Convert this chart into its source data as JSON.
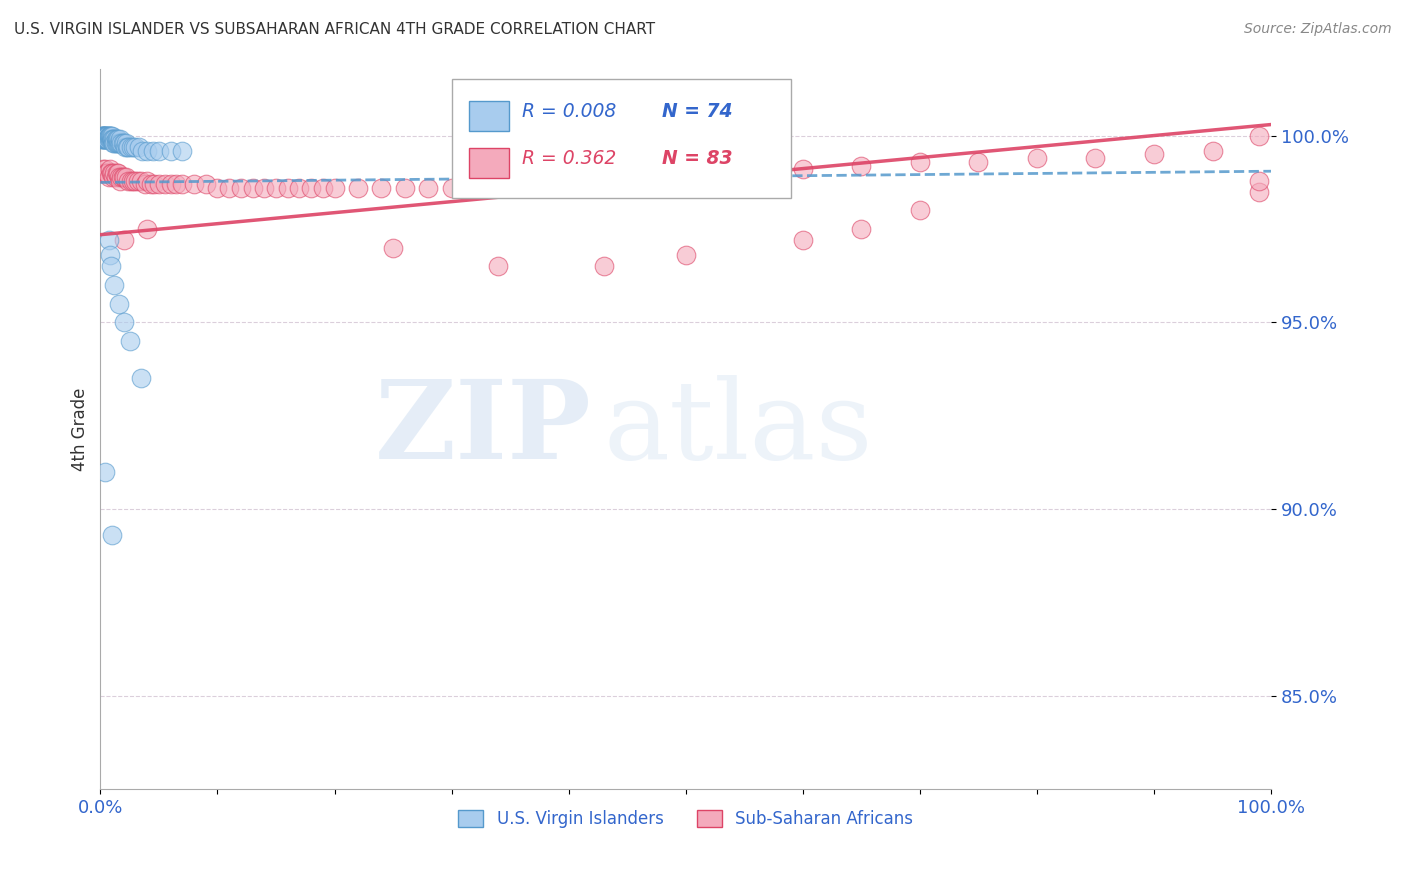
{
  "title": "U.S. VIRGIN ISLANDER VS SUBSAHARAN AFRICAN 4TH GRADE CORRELATION CHART",
  "source": "Source: ZipAtlas.com",
  "ylabel": "4th Grade",
  "ytick_labels": [
    "85.0%",
    "90.0%",
    "95.0%",
    "100.0%"
  ],
  "ytick_values": [
    0.85,
    0.9,
    0.95,
    1.0
  ],
  "xlim": [
    0.0,
    1.0
  ],
  "ylim": [
    0.825,
    1.018
  ],
  "legend_r1": "R = 0.008",
  "legend_n1": "N = 74",
  "legend_r2": "R = 0.362",
  "legend_n2": "N = 83",
  "color_blue": "#A8CCEE",
  "color_pink": "#F4AABC",
  "color_blue_line": "#5599CC",
  "color_pink_line": "#DD4466",
  "color_axis_label": "#3366CC",
  "color_title": "#333333",
  "watermark_zip": "ZIP",
  "watermark_atlas": "atlas",
  "legend_label_blue": "U.S. Virgin Islanders",
  "legend_label_pink": "Sub-Saharan Africans",
  "blue_scatter_x": [
    0.001,
    0.001,
    0.001,
    0.001,
    0.002,
    0.002,
    0.002,
    0.002,
    0.003,
    0.003,
    0.003,
    0.003,
    0.004,
    0.004,
    0.004,
    0.005,
    0.005,
    0.005,
    0.005,
    0.006,
    0.006,
    0.006,
    0.006,
    0.007,
    0.007,
    0.007,
    0.008,
    0.008,
    0.008,
    0.009,
    0.009,
    0.01,
    0.01,
    0.01,
    0.011,
    0.011,
    0.012,
    0.012,
    0.013,
    0.013,
    0.014,
    0.014,
    0.015,
    0.015,
    0.016,
    0.017,
    0.017,
    0.018,
    0.019,
    0.02,
    0.021,
    0.022,
    0.023,
    0.024,
    0.026,
    0.028,
    0.03,
    0.033,
    0.036,
    0.04,
    0.045,
    0.05,
    0.06,
    0.07,
    0.007,
    0.008,
    0.009,
    0.012,
    0.016,
    0.02,
    0.025,
    0.035,
    0.004,
    0.01
  ],
  "blue_scatter_y": [
    1.0,
    0.999,
    0.999,
    1.0,
    1.0,
    0.999,
    1.0,
    1.0,
    0.999,
    1.0,
    1.0,
    0.999,
    1.0,
    0.999,
    1.0,
    0.999,
    1.0,
    0.999,
    1.0,
    0.999,
    1.0,
    1.0,
    0.999,
    1.0,
    0.999,
    1.0,
    1.0,
    0.999,
    1.0,
    0.999,
    1.0,
    0.999,
    1.0,
    0.999,
    0.999,
    0.998,
    0.999,
    0.998,
    0.999,
    0.998,
    0.998,
    0.999,
    0.998,
    0.999,
    0.998,
    0.998,
    0.999,
    0.998,
    0.998,
    0.998,
    0.997,
    0.998,
    0.997,
    0.997,
    0.997,
    0.997,
    0.997,
    0.997,
    0.996,
    0.996,
    0.996,
    0.996,
    0.996,
    0.996,
    0.972,
    0.968,
    0.965,
    0.96,
    0.955,
    0.95,
    0.945,
    0.935,
    0.91,
    0.893
  ],
  "pink_scatter_x": [
    0.001,
    0.002,
    0.003,
    0.004,
    0.005,
    0.006,
    0.007,
    0.008,
    0.009,
    0.01,
    0.011,
    0.012,
    0.013,
    0.014,
    0.015,
    0.016,
    0.017,
    0.018,
    0.019,
    0.02,
    0.022,
    0.024,
    0.026,
    0.028,
    0.03,
    0.032,
    0.035,
    0.038,
    0.04,
    0.043,
    0.046,
    0.05,
    0.055,
    0.06,
    0.065,
    0.07,
    0.08,
    0.09,
    0.1,
    0.11,
    0.12,
    0.13,
    0.14,
    0.15,
    0.16,
    0.17,
    0.18,
    0.19,
    0.2,
    0.22,
    0.24,
    0.26,
    0.28,
    0.3,
    0.32,
    0.34,
    0.36,
    0.38,
    0.4,
    0.43,
    0.46,
    0.5,
    0.55,
    0.6,
    0.65,
    0.7,
    0.75,
    0.8,
    0.85,
    0.9,
    0.95,
    0.99,
    0.02,
    0.04,
    0.25,
    0.34,
    0.43,
    0.5,
    0.6,
    0.65,
    0.7,
    0.99,
    0.99
  ],
  "pink_scatter_y": [
    0.99,
    0.991,
    0.99,
    0.991,
    0.99,
    0.99,
    0.989,
    0.991,
    0.99,
    0.99,
    0.989,
    0.99,
    0.989,
    0.99,
    0.99,
    0.989,
    0.988,
    0.989,
    0.989,
    0.989,
    0.989,
    0.988,
    0.988,
    0.988,
    0.988,
    0.988,
    0.988,
    0.987,
    0.988,
    0.987,
    0.987,
    0.987,
    0.987,
    0.987,
    0.987,
    0.987,
    0.987,
    0.987,
    0.986,
    0.986,
    0.986,
    0.986,
    0.986,
    0.986,
    0.986,
    0.986,
    0.986,
    0.986,
    0.986,
    0.986,
    0.986,
    0.986,
    0.986,
    0.986,
    0.987,
    0.987,
    0.987,
    0.988,
    0.988,
    0.989,
    0.989,
    0.99,
    0.991,
    0.991,
    0.992,
    0.993,
    0.993,
    0.994,
    0.994,
    0.995,
    0.996,
    1.0,
    0.972,
    0.975,
    0.97,
    0.965,
    0.965,
    0.968,
    0.972,
    0.975,
    0.98,
    0.985,
    0.988
  ],
  "pink_trend_x0": 0.0,
  "pink_trend_y0": 0.9735,
  "pink_trend_x1": 1.0,
  "pink_trend_y1": 1.003,
  "blue_trend_x0": 0.0,
  "blue_trend_y0": 0.9875,
  "blue_trend_x1": 1.0,
  "blue_trend_y1": 0.9905
}
